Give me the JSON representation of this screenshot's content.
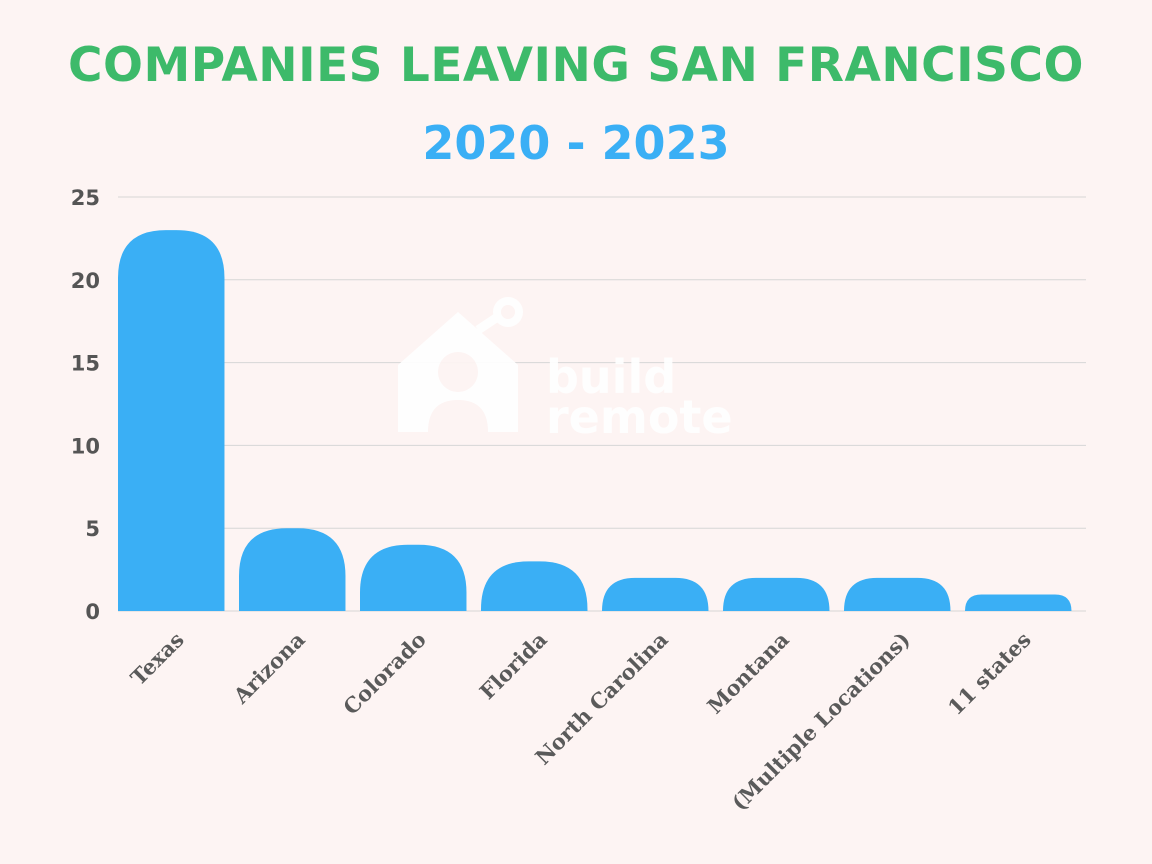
{
  "chart_data": {
    "type": "bar",
    "title": "COMPANIES LEAVING SAN FRANCISCO",
    "subtitle": "2020 - 2023",
    "xlabel": "",
    "ylabel": "",
    "categories": [
      "Texas",
      "Arizona",
      "Colorado",
      "Florida",
      "North Carolina",
      "Montana",
      "(Multiple Locations)",
      "11 states"
    ],
    "values": [
      23,
      5,
      4,
      3,
      2,
      2,
      2,
      1
    ],
    "ylim": [
      0,
      25
    ],
    "yticks": [
      0,
      5,
      10,
      15,
      20,
      25
    ],
    "grid": true,
    "legend": "none",
    "colors": {
      "bar": "#3aaff5",
      "title": "#3dba6a",
      "subtitle": "#3aaff5",
      "background": "#fdf4f3"
    }
  },
  "watermark": {
    "logo_icon": "house-icon",
    "line1": "build",
    "line2": "remote"
  }
}
